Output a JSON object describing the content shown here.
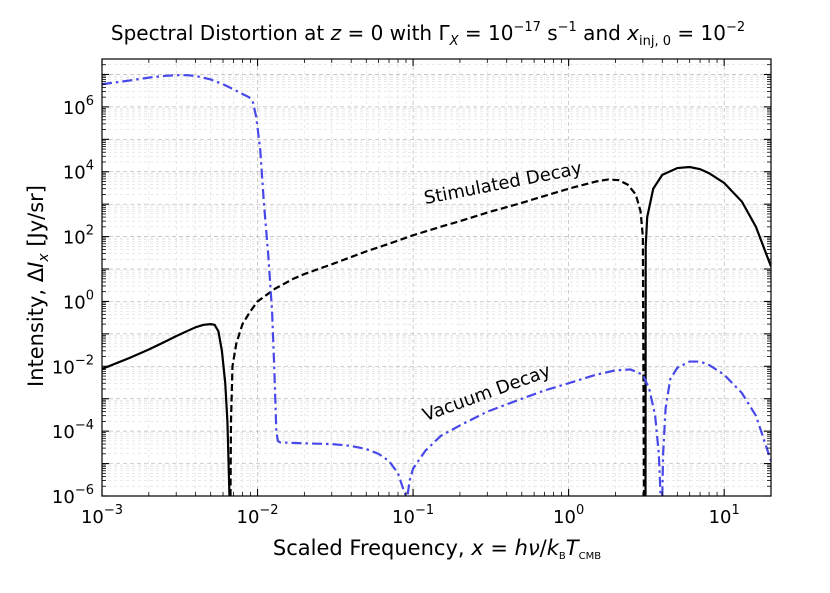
{
  "chart_data": {
    "type": "line",
    "title": "Spectral Distortion at z = 0 with Γ_X = 10^−17 s^−1 and x_inj,0 = 10^−2",
    "xlabel": "Scaled Frequency, x = hν/k_B T_CMB",
    "ylabel": "Intensity, ΔI_x   [Jy/sr]",
    "xscale": "log",
    "yscale": "log",
    "xlim": [
      0.001,
      20
    ],
    "ylim": [
      1e-06,
      30000000.0
    ],
    "x_ticks": [
      0.001,
      0.01,
      0.1,
      1,
      10
    ],
    "y_ticks": [
      1e-06,
      0.0001,
      0.01,
      1,
      100,
      10000,
      1000000
    ],
    "grid": "major and minor, dashed",
    "annotations": [
      {
        "text": "Stimulated Decay",
        "x": 0.12,
        "y": 1000,
        "angle_deg": -11
      },
      {
        "text": "Vacuum Decay",
        "x": 0.12,
        "y": 0.0002,
        "angle_deg": -20
      }
    ],
    "series": [
      {
        "name": "Stimulated Decay",
        "color": "#000000",
        "style": "solid/dashed (dashed where negative)",
        "points": [
          [
            0.001,
            0.0083
          ],
          [
            0.0015,
            0.018
          ],
          [
            0.002,
            0.033
          ],
          [
            0.0025,
            0.055
          ],
          [
            0.003,
            0.085
          ],
          [
            0.0035,
            0.12
          ],
          [
            0.004,
            0.16
          ],
          [
            0.0045,
            0.19
          ],
          [
            0.005,
            0.2
          ],
          [
            0.0053,
            0.19
          ],
          [
            0.0056,
            0.12
          ],
          [
            0.0059,
            0.03
          ],
          [
            0.0062,
            0.003
          ],
          [
            0.0064,
            0.0002
          ],
          [
            0.0066,
            1e-06
          ],
          [
            0.0067,
            1e-06
          ],
          [
            0.00675,
            0.0002
          ],
          [
            0.0069,
            0.01
          ],
          [
            0.0073,
            0.05
          ],
          [
            0.008,
            0.2
          ],
          [
            0.009,
            0.5
          ],
          [
            0.01,
            1.0
          ],
          [
            0.013,
            2.5
          ],
          [
            0.017,
            5
          ],
          [
            0.02,
            7
          ],
          [
            0.03,
            14
          ],
          [
            0.05,
            35
          ],
          [
            0.07,
            60
          ],
          [
            0.1,
            110
          ],
          [
            0.15,
            200
          ],
          [
            0.2,
            300
          ],
          [
            0.3,
            550
          ],
          [
            0.5,
            1100
          ],
          [
            0.7,
            1800
          ],
          [
            1.0,
            3000
          ],
          [
            1.5,
            5000
          ],
          [
            1.8,
            5800
          ],
          [
            2.1,
            5500
          ],
          [
            2.4,
            4000
          ],
          [
            2.7,
            2000
          ],
          [
            2.9,
            600
          ],
          [
            3.0,
            100
          ],
          [
            3.05,
            1e-06
          ],
          [
            3.12,
            1e-06
          ],
          [
            3.13,
            50
          ],
          [
            3.2,
            400
          ],
          [
            3.5,
            3000
          ],
          [
            4.0,
            8000
          ],
          [
            5.0,
            13000
          ],
          [
            6.0,
            14000
          ],
          [
            7.0,
            12000
          ],
          [
            8.0,
            9000
          ],
          [
            10.0,
            4500
          ],
          [
            13.0,
            1200
          ],
          [
            16.0,
            200
          ],
          [
            20.0,
            12
          ]
        ]
      },
      {
        "name": "Vacuum Decay",
        "color": "#4848e8",
        "style": "dash-dot",
        "points": [
          [
            0.001,
            5000000
          ],
          [
            0.0015,
            6500000
          ],
          [
            0.002,
            8000000
          ],
          [
            0.0025,
            9000000
          ],
          [
            0.003,
            9500000
          ],
          [
            0.0035,
            9500000
          ],
          [
            0.004,
            9000000
          ],
          [
            0.005,
            7000000
          ],
          [
            0.006,
            5000000
          ],
          [
            0.007,
            3500000
          ],
          [
            0.008,
            2500000
          ],
          [
            0.0088,
            2000000
          ],
          [
            0.0093,
            1500000
          ],
          [
            0.0098,
            500000
          ],
          [
            0.0104,
            50000
          ],
          [
            0.011,
            1000
          ],
          [
            0.0117,
            30
          ],
          [
            0.0124,
            0.5
          ],
          [
            0.0128,
            0.01
          ],
          [
            0.0132,
            0.0001
          ],
          [
            0.0135,
            5e-05
          ],
          [
            0.014,
            4.5e-05
          ],
          [
            0.02,
            4.2e-05
          ],
          [
            0.03,
            4e-05
          ],
          [
            0.04,
            3.5e-05
          ],
          [
            0.05,
            2.8e-05
          ],
          [
            0.06,
            2e-05
          ],
          [
            0.07,
            1.2e-05
          ],
          [
            0.08,
            5e-06
          ],
          [
            0.087,
            1.5e-06
          ],
          [
            0.09,
            1e-06
          ],
          [
            0.092,
            1e-06
          ],
          [
            0.095,
            3e-06
          ],
          [
            0.1,
            7e-06
          ],
          [
            0.12,
            2.5e-05
          ],
          [
            0.15,
            7e-05
          ],
          [
            0.2,
            0.00015
          ],
          [
            0.3,
            0.0004
          ],
          [
            0.5,
            0.001
          ],
          [
            0.7,
            0.0018
          ],
          [
            1.0,
            0.003
          ],
          [
            1.5,
            0.0055
          ],
          [
            2.0,
            0.0075
          ],
          [
            2.5,
            0.008
          ],
          [
            3.0,
            0.0055
          ],
          [
            3.3,
            0.002
          ],
          [
            3.6,
            0.0003
          ],
          [
            3.8,
            2e-05
          ],
          [
            3.9,
            1e-06
          ],
          [
            4.0,
            1e-06
          ],
          [
            4.05,
            2e-05
          ],
          [
            4.2,
            0.0005
          ],
          [
            4.5,
            0.004
          ],
          [
            5.0,
            0.009
          ],
          [
            6.0,
            0.014
          ],
          [
            7.0,
            0.014
          ],
          [
            8.0,
            0.011
          ],
          [
            10.0,
            0.0055
          ],
          [
            13.0,
            0.0015
          ],
          [
            16.0,
            0.0003
          ],
          [
            20.0,
            1.2e-05
          ]
        ]
      }
    ]
  },
  "labels": {
    "title_prefix": "Spectral Distortion at ",
    "title_z": "z",
    "title_eq0": " = 0 with ",
    "title_gamma": "Γ",
    "title_gamma_sub": "X",
    "title_eq1": " = 10",
    "title_exp1": "−17",
    "title_unit": " s",
    "title_exp2": "−1",
    "title_and": " and ",
    "title_x": "x",
    "title_inj": "inj, 0",
    "title_eq2": " = 10",
    "title_exp3": "−2",
    "xlabel_text": "Scaled Frequency, ",
    "xlabel_x": "x",
    "xlabel_eq": " = ",
    "xlabel_h": "h",
    "xlabel_nu": "ν",
    "xlabel_slash": "/",
    "xlabel_k": "k",
    "xlabel_ksub": "B",
    "xlabel_T": "T",
    "xlabel_Tsub": "CMB",
    "ylabel_text": "Intensity, ",
    "ylabel_delta": "Δ",
    "ylabel_I": "I",
    "ylabel_Isub": "x",
    "ylabel_unit": "   [Jy/sr]",
    "ann_stimulated": "Stimulated Decay",
    "ann_vacuum": "Vacuum Decay",
    "x_tick_labels": [
      {
        "base": "10",
        "exp": "−3"
      },
      {
        "base": "10",
        "exp": "−2"
      },
      {
        "base": "10",
        "exp": "−1"
      },
      {
        "base": "10",
        "exp": "0"
      },
      {
        "base": "10",
        "exp": "1"
      }
    ],
    "y_tick_labels": [
      {
        "base": "10",
        "exp": "−6"
      },
      {
        "base": "10",
        "exp": "−4"
      },
      {
        "base": "10",
        "exp": "−2"
      },
      {
        "base": "10",
        "exp": "0"
      },
      {
        "base": "10",
        "exp": "2"
      },
      {
        "base": "10",
        "exp": "4"
      },
      {
        "base": "10",
        "exp": "6"
      }
    ]
  }
}
